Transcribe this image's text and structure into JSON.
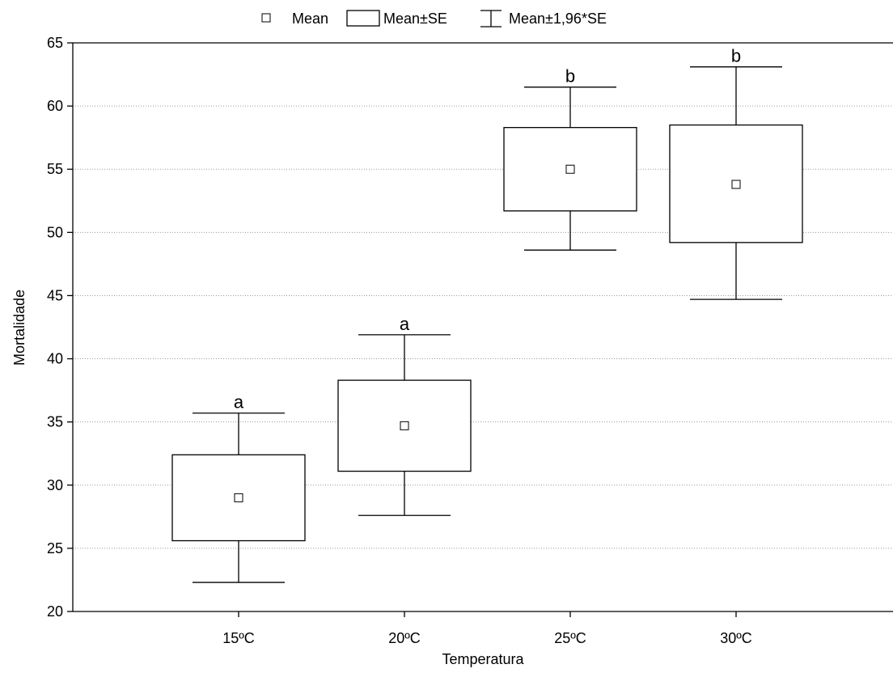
{
  "legend": {
    "mean": "Mean",
    "box": "Mean±SE",
    "whisker": "Mean±1,96*SE"
  },
  "chart_data": {
    "type": "box",
    "xlabel": "Temperatura",
    "ylabel": "Mortalidade",
    "ylim": [
      20,
      65
    ],
    "yticks": [
      20,
      25,
      30,
      35,
      40,
      45,
      50,
      55,
      60,
      65
    ],
    "grid": true,
    "legend_position": "top",
    "categories": [
      "15ºC",
      "20ºC",
      "25ºC",
      "30ºC"
    ],
    "mean": [
      29.0,
      34.7,
      55.0,
      53.8
    ],
    "se_low": [
      25.6,
      31.1,
      51.7,
      49.2
    ],
    "se_high": [
      32.4,
      38.3,
      58.3,
      58.5
    ],
    "ci_low": [
      22.3,
      27.6,
      48.6,
      44.7
    ],
    "ci_high": [
      35.7,
      41.9,
      61.5,
      63.1
    ],
    "group_letters": [
      "a",
      "a",
      "b",
      "b"
    ]
  }
}
